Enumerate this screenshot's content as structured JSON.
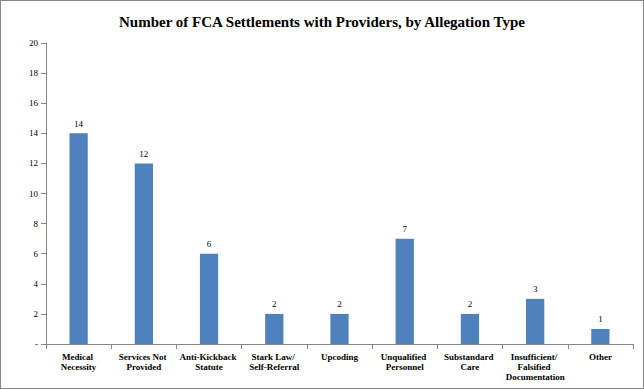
{
  "chart_data": {
    "type": "bar",
    "title": "Number of FCA Settlements with Providers, by Allegation Type",
    "categories": [
      "Medical Necessity",
      "Services Not Provided",
      "Anti-Kickback Statute",
      "Stark Law/ Self-Referral",
      "Upcoding",
      "Unqualified Personnel",
      "Substandard Care",
      "Insufficient/ Falsified Documentation",
      "Other"
    ],
    "values": [
      14,
      12,
      6,
      2,
      2,
      7,
      2,
      3,
      1
    ],
    "color": "#4f81bd",
    "ylim": [
      0,
      20
    ],
    "yticks": [
      {
        "value": 0,
        "label": "-"
      },
      2,
      4,
      6,
      8,
      10,
      12,
      14,
      16,
      18,
      20
    ],
    "grid": false,
    "data_labels": true
  }
}
